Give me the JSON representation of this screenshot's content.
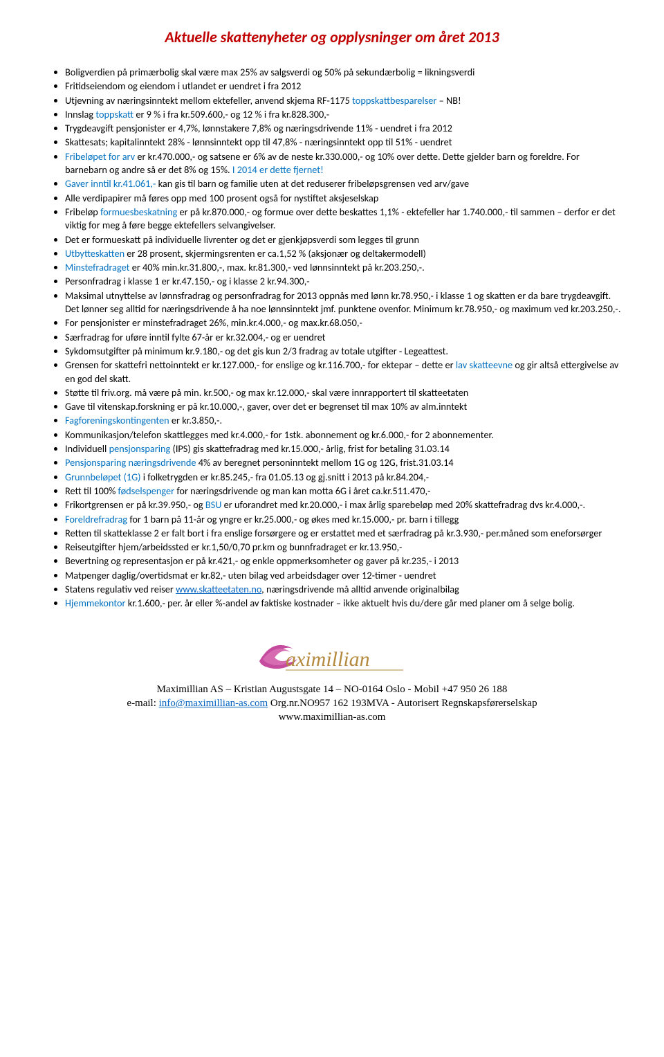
{
  "title_color": "#c00000",
  "blue": "#0070c0",
  "link_color": "#0563c1",
  "title": "Aktuelle skattenyheter og opplysninger om året 2013",
  "items": [
    {
      "segments": [
        {
          "t": "Boligverdien på primærbolig skal være max 25% av salgsverdi og 50% på sekundærbolig = likningsverdi"
        }
      ]
    },
    {
      "segments": [
        {
          "t": "Fritidseiendom og eiendom i utlandet er uendret i fra 2012"
        }
      ]
    },
    {
      "segments": [
        {
          "t": "Utjevning av næringsinntekt mellom ektefeller, anvend skjema RF-1175 "
        },
        {
          "t": "toppskattbesparelser",
          "c": "blue"
        },
        {
          "t": " – NB!"
        }
      ]
    },
    {
      "segments": [
        {
          "t": "Innslag "
        },
        {
          "t": "toppskatt",
          "c": "blue"
        },
        {
          "t": " er 9 % i fra kr.509.600,- og 12 % i fra kr.828.300,-"
        }
      ]
    },
    {
      "segments": [
        {
          "t": "Trygdeavgift pensjonister er 4,7%, lønnstakere 7,8% og næringsdrivende 11% - uendret i fra 2012"
        }
      ]
    },
    {
      "segments": [
        {
          "t": "Skattesats;  kapitalinntekt 28% - lønnsinntekt opp til 47,8% - næringsinntekt opp til 51% - uendret"
        }
      ]
    },
    {
      "segments": [
        {
          "t": "Fribeløpet for arv",
          "c": "blue"
        },
        {
          "t": " er kr.470.000,- og satsene er 6% av de neste kr.330.000,- og 10% over dette. Dette gjelder barn og foreldre. For barnebarn og andre så er det 8% og 15%. "
        },
        {
          "t": "I 2014 er dette fjernet!",
          "c": "blue"
        }
      ]
    },
    {
      "segments": [
        {
          "t": "Gaver inntil kr.41.061,-",
          "c": "blue"
        },
        {
          "t": " kan gis til barn og familie uten at det reduserer fribeløpsgrensen ved arv/gave"
        }
      ]
    },
    {
      "segments": [
        {
          "t": "Alle verdipapirer må føres opp med 100 prosent også for nystiftet aksjeselskap"
        }
      ]
    },
    {
      "segments": [
        {
          "t": "Fribeløp "
        },
        {
          "t": "formuesbeskatning",
          "c": "blue"
        },
        {
          "t": " er på kr.870.000,- og formue over dette beskattes 1,1% - ektefeller har 1.740.000,- til sammen – derfor er det viktig for meg å føre begge ektefellers selvangivelser."
        }
      ]
    },
    {
      "segments": [
        {
          "t": "Det er formueskatt på individuelle livrenter og det er gjenkjøpsverdi som legges til grunn"
        }
      ]
    },
    {
      "segments": [
        {
          "t": "Utbytteskatten",
          "c": "blue"
        },
        {
          "t": " er 28 prosent, skjermingsrenten er ca.1,52 % (aksjonær og deltakermodell)"
        }
      ]
    },
    {
      "segments": [
        {
          "t": "Minstefradraget",
          "c": "blue"
        },
        {
          "t": " er 40% min.kr.31.800,-, max. kr.81.300,- ved lønnsinntekt på kr.203.250,-."
        }
      ]
    },
    {
      "segments": [
        {
          "t": "Personfradrag i klasse 1 er kr.47.150,- og i klasse 2 kr.94.300,-"
        }
      ]
    },
    {
      "segments": [
        {
          "t": "Maksimal utnyttelse av lønnsfradrag og personfradrag for 2013 oppnås med lønn kr.78.950,- i klasse 1 og skatten er da bare trygdeavgift. Det lønner seg alltid for næringsdrivende å ha noe lønnsinntekt jmf. punktene ovenfor.  Minimum kr.78.950,- og maximum ved kr.203.250,-."
        }
      ]
    },
    {
      "segments": [
        {
          "t": "For pensjonister er minstefradraget 26%, min.kr.4.000,- og max.kr.68.050,-"
        }
      ]
    },
    {
      "segments": [
        {
          "t": "Særfradrag for uføre inntil fylte 67-år er kr.32.004,- og er uendret"
        }
      ]
    },
    {
      "segments": [
        {
          "t": "Sykdomsutgifter på minimum kr.9.180,- og det gis kun 2/3 fradrag av totale utgifter - Legeattest."
        }
      ]
    },
    {
      "segments": [
        {
          "t": "Grensen for skattefri nettoinntekt er kr.127.000,- for enslige og kr.116.700,- for ektepar – dette er "
        },
        {
          "t": "lav skatteevne",
          "c": "blue"
        },
        {
          "t": " og gir altså ettergivelse av en god del skatt."
        }
      ]
    },
    {
      "segments": [
        {
          "t": "Støtte til friv.org. må være på min. kr.500,- og max kr.12.000,- skal være innrapportert til skatteetaten"
        }
      ]
    },
    {
      "segments": [
        {
          "t": "Gave til vitenskap.forskning er på kr.10.000,-, gaver, over det er begrenset til max 10% av alm.inntekt"
        }
      ]
    },
    {
      "segments": [
        {
          "t": "Fagforeningskontingenten",
          "c": "blue"
        },
        {
          "t": " er kr.3.850,-."
        }
      ]
    },
    {
      "segments": [
        {
          "t": "Kommunikasjon/telefon skattlegges med kr.4.000,- for 1stk. abonnement og kr.6.000,- for 2 abonnementer."
        }
      ]
    },
    {
      "segments": [
        {
          "t": "Individuell "
        },
        {
          "t": "pensjonsparing",
          "c": "blue"
        },
        {
          "t": " (IPS) gis skattefradrag med kr.15.000,- årlig, frist for betaling 31.03.14"
        }
      ]
    },
    {
      "segments": [
        {
          "t": "Pensjonsparing næringsdrivende",
          "c": "blue"
        },
        {
          "t": " 4% av beregnet personinntekt mellom 1G og 12G, frist.31.03.14"
        }
      ]
    },
    {
      "segments": [
        {
          "t": "Grunnbeløpet (1G)",
          "c": "blue"
        },
        {
          "t": " i folketrygden er kr.85.245,- fra 01.05.13 og gj.snitt i 2013 på kr.84.204,-"
        }
      ]
    },
    {
      "segments": [
        {
          "t": "Rett til 100% "
        },
        {
          "t": "fødselspenger",
          "c": "blue"
        },
        {
          "t": " for næringsdrivende og man kan motta 6G i året ca.kr.511.470,-"
        }
      ]
    },
    {
      "segments": [
        {
          "t": "Frikortgrensen er på kr.39.950,- og "
        },
        {
          "t": "BSU",
          "c": "blue"
        },
        {
          "t": " er uforandret med kr.20.000,- i max årlig sparebeløp med 20% skattefradrag dvs kr.4.000,-."
        }
      ]
    },
    {
      "segments": [
        {
          "t": "Foreldrefradrag",
          "c": "blue"
        },
        {
          "t": " for 1 barn på 11-år og yngre er kr.25.000,- og økes med kr.15.000,- pr. barn i tillegg"
        }
      ]
    },
    {
      "segments": [
        {
          "t": "Retten til skatteklasse 2 er falt bort i fra enslige forsørgere og er erstattet med et særfradrag på kr.3.930,- per.måned som eneforsørger"
        }
      ]
    },
    {
      "segments": [
        {
          "t": "Reiseutgifter hjem/arbeidssted er kr.1,50/0,70 pr.km og bunnfradraget er kr.13.950,-"
        }
      ]
    },
    {
      "segments": [
        {
          "t": "Bevertning og representasjon er på kr.421,- og enkle oppmerksomheter og gaver på kr.235,- i 2013"
        }
      ]
    },
    {
      "segments": [
        {
          "t": "Matpenger daglig/overtidsmat er kr.82,- uten bilag ved arbeidsdager over 12-timer - uendret"
        }
      ]
    },
    {
      "segments": [
        {
          "t": "Statens regulativ ved reiser "
        },
        {
          "t": "www.skatteetaten.no",
          "c": "link"
        },
        {
          "t": ", næringsdrivende må alltid anvende originalbilag"
        }
      ]
    },
    {
      "segments": [
        {
          "t": "Hjemmekontor",
          "c": "blue"
        },
        {
          "t": " kr.1.600,- per. år eller %-andel av faktiske kostnader – ikke aktuelt hvis du/dere går med planer om å selge bolig."
        }
      ]
    }
  ],
  "logo": {
    "text": "aximillian",
    "color": "#b58a3e",
    "accent": "#c44b9e"
  },
  "footer": {
    "line1a": "Maximillian AS – Kristian Augustsgate 14 – NO-0164 Oslo - Mobil +47 950 26 188",
    "line2_prefix": "e-mail: ",
    "line2_link": "info@maximillian-as.com",
    "line2_suffix": " Org.nr.NO957 162 193MVA - Autorisert Regnskapsførerselskap",
    "line3": "www.maximillian-as.com"
  }
}
